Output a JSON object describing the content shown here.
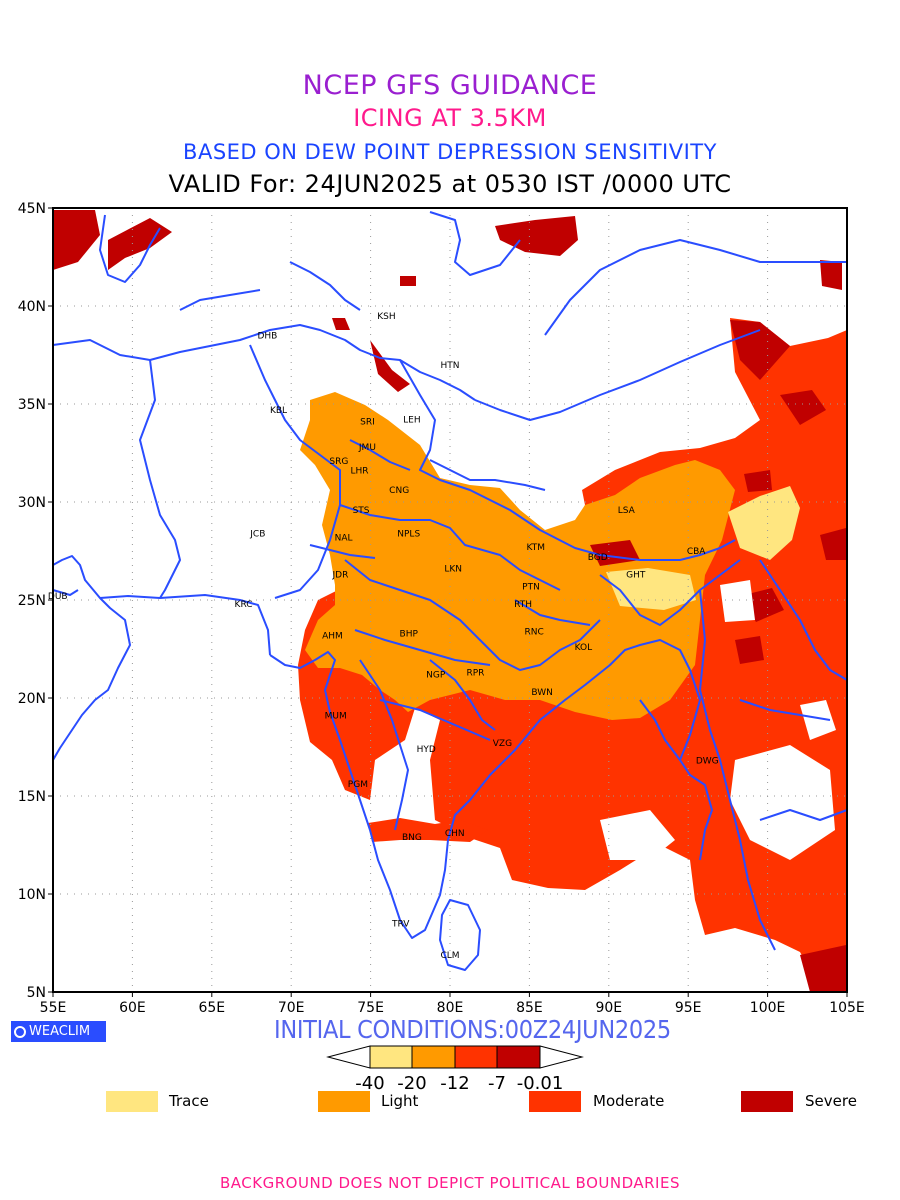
{
  "header": {
    "title": "NCEP GFS GUIDANCE",
    "subtitle": "ICING AT 3.5KM",
    "method": "BASED ON DEW POINT DEPRESSION SENSITIVITY",
    "valid": "VALID For: 24JUN2025 at 0530 IST /0000 UTC"
  },
  "colors": {
    "title": "#9a1fd0",
    "subtitle": "#ff1a8c",
    "method": "#1a44ff",
    "valid": "#000000",
    "coast": "#2a4dff",
    "init": "#5566ee",
    "footer": "#ff1a8c",
    "trace": "#ffe680",
    "light": "#ff9a00",
    "moderate": "#ff3300",
    "severe": "#c00000"
  },
  "map": {
    "lat_ticks": [
      "45N",
      "40N",
      "35N",
      "30N",
      "25N",
      "20N",
      "15N",
      "10N",
      "5N"
    ],
    "lon_ticks": [
      "55E",
      "60E",
      "65E",
      "70E",
      "75E",
      "80E",
      "85E",
      "90E",
      "95E",
      "100E",
      "105E"
    ],
    "stations": [
      {
        "id": "KSH",
        "lon": 76.0,
        "lat": 39.5
      },
      {
        "id": "DHB",
        "lon": 68.5,
        "lat": 38.5
      },
      {
        "id": "HTN",
        "lon": 80.0,
        "lat": 37.0
      },
      {
        "id": "KBL",
        "lon": 69.2,
        "lat": 34.7
      },
      {
        "id": "SRI",
        "lon": 74.8,
        "lat": 34.1
      },
      {
        "id": "LEH",
        "lon": 77.6,
        "lat": 34.2
      },
      {
        "id": "JMU",
        "lon": 74.8,
        "lat": 32.8
      },
      {
        "id": "SRG",
        "lon": 73.0,
        "lat": 32.1
      },
      {
        "id": "LHR",
        "lon": 74.3,
        "lat": 31.6
      },
      {
        "id": "CNG",
        "lon": 76.8,
        "lat": 30.6
      },
      {
        "id": "STS",
        "lon": 74.4,
        "lat": 29.6
      },
      {
        "id": "LSA",
        "lon": 91.1,
        "lat": 29.6
      },
      {
        "id": "JCB",
        "lon": 67.9,
        "lat": 28.4
      },
      {
        "id": "NPLS",
        "lon": 77.4,
        "lat": 28.4
      },
      {
        "id": "NAL",
        "lon": 73.3,
        "lat": 28.2
      },
      {
        "id": "KTM",
        "lon": 85.4,
        "lat": 27.7
      },
      {
        "id": "CBA",
        "lon": 95.5,
        "lat": 27.5
      },
      {
        "id": "BGD",
        "lon": 89.3,
        "lat": 27.2
      },
      {
        "id": "JDR",
        "lon": 73.1,
        "lat": 26.3
      },
      {
        "id": "LKN",
        "lon": 80.2,
        "lat": 26.6
      },
      {
        "id": "GHT",
        "lon": 91.7,
        "lat": 26.3
      },
      {
        "id": "PTN",
        "lon": 85.1,
        "lat": 25.7
      },
      {
        "id": "DUB",
        "lon": 55.3,
        "lat": 25.2
      },
      {
        "id": "KRC",
        "lon": 67.0,
        "lat": 24.8
      },
      {
        "id": "RTH",
        "lon": 84.6,
        "lat": 24.8
      },
      {
        "id": "AHM",
        "lon": 72.6,
        "lat": 23.2
      },
      {
        "id": "BHP",
        "lon": 77.4,
        "lat": 23.3
      },
      {
        "id": "RNC",
        "lon": 85.3,
        "lat": 23.4
      },
      {
        "id": "KOL",
        "lon": 88.4,
        "lat": 22.6
      },
      {
        "id": "NGP",
        "lon": 79.1,
        "lat": 21.2
      },
      {
        "id": "RPR",
        "lon": 81.6,
        "lat": 21.3
      },
      {
        "id": "BWN",
        "lon": 85.8,
        "lat": 20.3
      },
      {
        "id": "MUM",
        "lon": 72.8,
        "lat": 19.1
      },
      {
        "id": "HYD",
        "lon": 78.5,
        "lat": 17.4
      },
      {
        "id": "VZG",
        "lon": 83.3,
        "lat": 17.7
      },
      {
        "id": "DWG",
        "lon": 96.2,
        "lat": 16.8
      },
      {
        "id": "PGM",
        "lon": 74.2,
        "lat": 15.6
      },
      {
        "id": "CHN",
        "lon": 80.3,
        "lat": 13.1
      },
      {
        "id": "BNG",
        "lon": 77.6,
        "lat": 12.9
      },
      {
        "id": "TRV",
        "lon": 76.9,
        "lat": 8.5
      },
      {
        "id": "CLM",
        "lon": 80.0,
        "lat": 6.9
      }
    ]
  },
  "logo": "WEACLIM",
  "init_label": "INITIAL CONDITIONS:00Z24JUN2025",
  "colorbar": {
    "labels": [
      "-40",
      "-20",
      "-12",
      "-7",
      "-0.01"
    ]
  },
  "legend": [
    {
      "label": "Trace",
      "color_key": "trace"
    },
    {
      "label": "Light",
      "color_key": "light"
    },
    {
      "label": "Moderate",
      "color_key": "moderate"
    },
    {
      "label": "Severe",
      "color_key": "severe"
    }
  ],
  "footer": "BACKGROUND DOES NOT DEPICT POLITICAL BOUNDARIES"
}
